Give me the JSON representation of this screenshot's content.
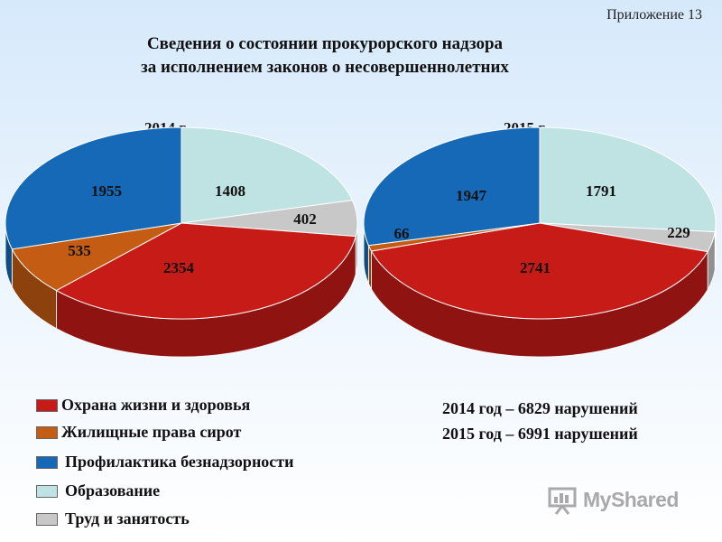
{
  "header": {
    "appendix": "Приложение 13",
    "title_line1": "Сведения о состоянии прокурорского надзора",
    "title_line2": "за исполнением законов о несовершеннолетних"
  },
  "chart_data": [
    {
      "type": "pie",
      "title": "2014 г.",
      "categories": [
        "Охрана жизни и здоровья",
        "Жилищные права сирот",
        "Профилактика безнадзорности",
        "Образование",
        "Труд и занятость"
      ],
      "values": [
        2354,
        535,
        1955,
        1408,
        402
      ],
      "labels": [
        "2354",
        "535",
        "1955",
        "1408",
        "402"
      ]
    },
    {
      "type": "pie",
      "title": "2015 г.",
      "categories": [
        "Охрана жизни и здоровья",
        "Жилищные права сирот",
        "Профилактика безнадзорности",
        "Образование",
        "Труд и занятость"
      ],
      "values": [
        2741,
        66,
        1947,
        1791,
        229
      ],
      "labels": [
        "2741",
        "66",
        "1947",
        "1791",
        "229"
      ]
    }
  ],
  "colors": {
    "health": "#c61b17",
    "orphans": "#c45c13",
    "prevention": "#1569b6",
    "education": "#bfe3e2",
    "labor": "#c8c8c8"
  },
  "legend": {
    "items": [
      {
        "label": "Охрана жизни и здоровья",
        "color": "#c61b17"
      },
      {
        "label": "Жилищные права сирот",
        "color": "#c45c13"
      },
      {
        "label": "Профилактика безнадзорности",
        "color": "#1569b6"
      },
      {
        "label": "Образование",
        "color": "#bfe3e2"
      },
      {
        "label": "Труд и занятость",
        "color": "#c8c8c8"
      }
    ]
  },
  "totals": {
    "line1": "2014 год – 6829 нарушений",
    "line2": "2015 год – 6991 нарушений"
  },
  "watermark": {
    "text": "MyShared",
    "icon": "presentation-icon"
  }
}
